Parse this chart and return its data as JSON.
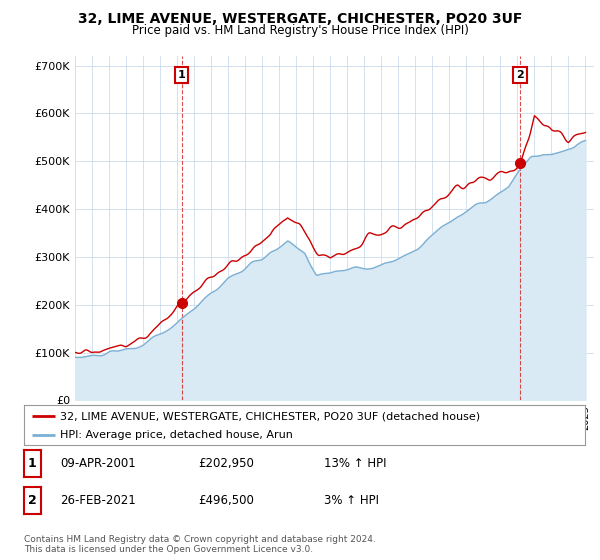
{
  "title": "32, LIME AVENUE, WESTERGATE, CHICHESTER, PO20 3UF",
  "subtitle": "Price paid vs. HM Land Registry's House Price Index (HPI)",
  "ylabel_ticks": [
    "£0",
    "£100K",
    "£200K",
    "£300K",
    "£400K",
    "£500K",
    "£600K",
    "£700K"
  ],
  "ylim": [
    0,
    720000
  ],
  "xlim_start": 1995.0,
  "xlim_end": 2025.5,
  "sale1_date": 2001.27,
  "sale1_price": 202950,
  "sale2_date": 2021.15,
  "sale2_price": 496500,
  "red_line_color": "#cc0000",
  "blue_line_color": "#7bafd4",
  "blue_fill_color": "#daeaf5",
  "annotation_box_color": "#cc0000",
  "legend_line1": "32, LIME AVENUE, WESTERGATE, CHICHESTER, PO20 3UF (detached house)",
  "legend_line2": "HPI: Average price, detached house, Arun",
  "table_row1": [
    "1",
    "09-APR-2001",
    "£202,950",
    "13% ↑ HPI"
  ],
  "table_row2": [
    "2",
    "26-FEB-2021",
    "£496,500",
    "3% ↑ HPI"
  ],
  "footnote": "Contains HM Land Registry data © Crown copyright and database right 2024.\nThis data is licensed under the Open Government Licence v3.0.",
  "background_color": "#ffffff",
  "grid_color": "#ccddee"
}
